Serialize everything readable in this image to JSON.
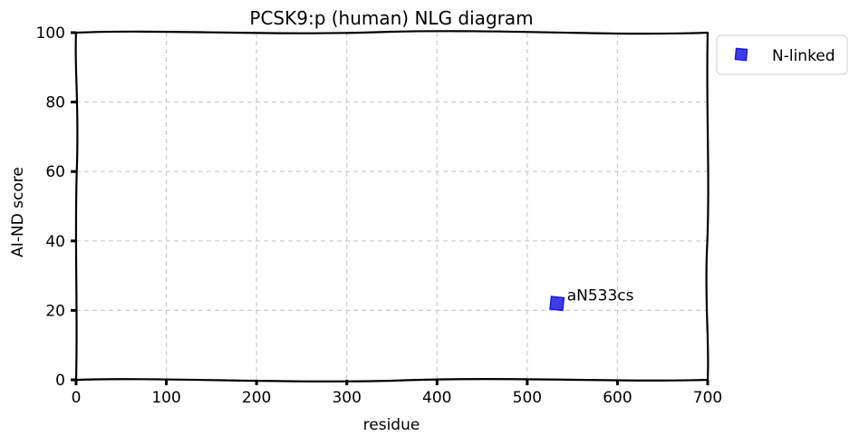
{
  "chart_data": {
    "type": "scatter",
    "title": "PCSK9:p (human) NLG diagram",
    "xlabel": "residue",
    "ylabel": "AI-ND score",
    "xlim": [
      0,
      700
    ],
    "ylim": [
      0,
      100
    ],
    "xticks": [
      "0",
      "100",
      "200",
      "300",
      "400",
      "500",
      "600",
      "700"
    ],
    "yticks": [
      "0",
      "20",
      "40",
      "60",
      "80",
      "100"
    ],
    "grid": true,
    "legend_position": "outside-top-right",
    "series": [
      {
        "name": "N-linked",
        "color": "#1a1ae6",
        "marker": "square",
        "points": [
          {
            "x": 533,
            "y": 22,
            "label": "aN533cs"
          }
        ]
      }
    ]
  }
}
